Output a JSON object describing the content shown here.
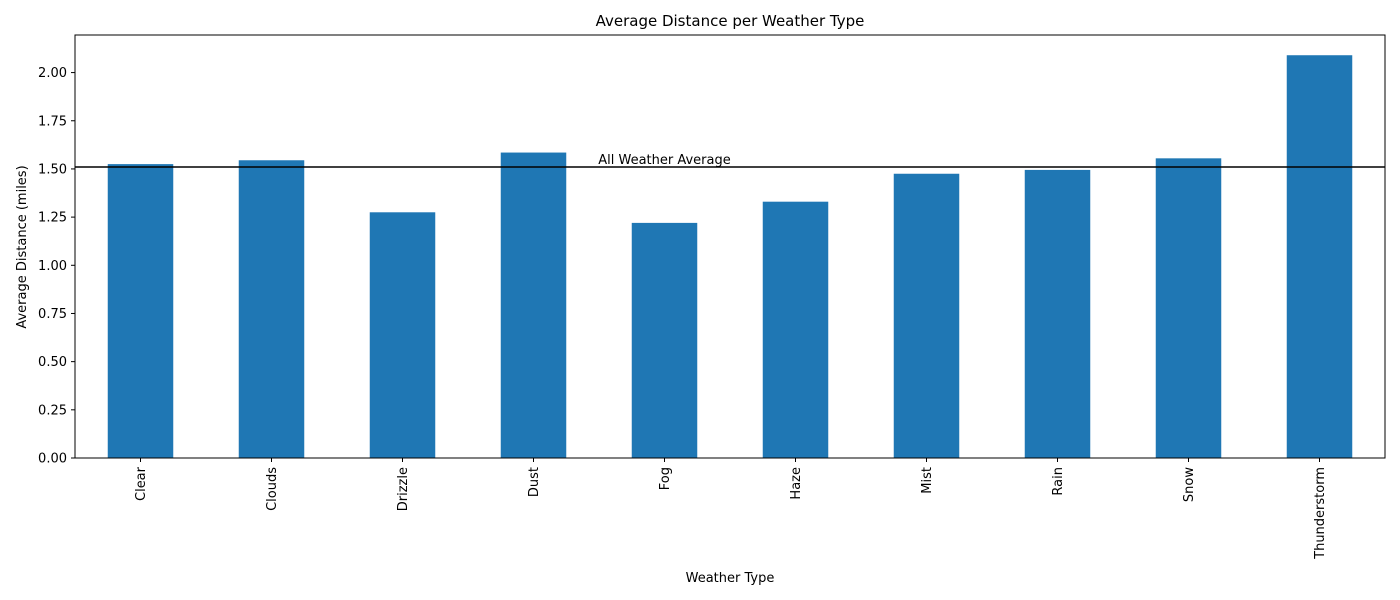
{
  "chart_data": {
    "type": "bar",
    "title": "Average Distance per Weather Type",
    "xlabel": "Weather Type",
    "ylabel": "Average Distance (miles)",
    "categories": [
      "Clear",
      "Clouds",
      "Drizzle",
      "Dust",
      "Fog",
      "Haze",
      "Mist",
      "Rain",
      "Snow",
      "Thunderstorm"
    ],
    "values": [
      1.525,
      1.545,
      1.275,
      1.585,
      1.22,
      1.33,
      1.475,
      1.495,
      1.555,
      2.09
    ],
    "ylim": [
      0,
      2.195
    ],
    "yticks": [
      0.0,
      0.25,
      0.5,
      0.75,
      1.0,
      1.25,
      1.5,
      1.75,
      2.0
    ],
    "ytick_labels": [
      "0.00",
      "0.25",
      "0.50",
      "0.75",
      "1.00",
      "1.25",
      "1.50",
      "1.75",
      "2.00"
    ],
    "grid": false,
    "bar_color": "#1f77b4",
    "reference_line": {
      "value": 1.51,
      "label": "All Weather Average",
      "color": "#000000"
    }
  }
}
